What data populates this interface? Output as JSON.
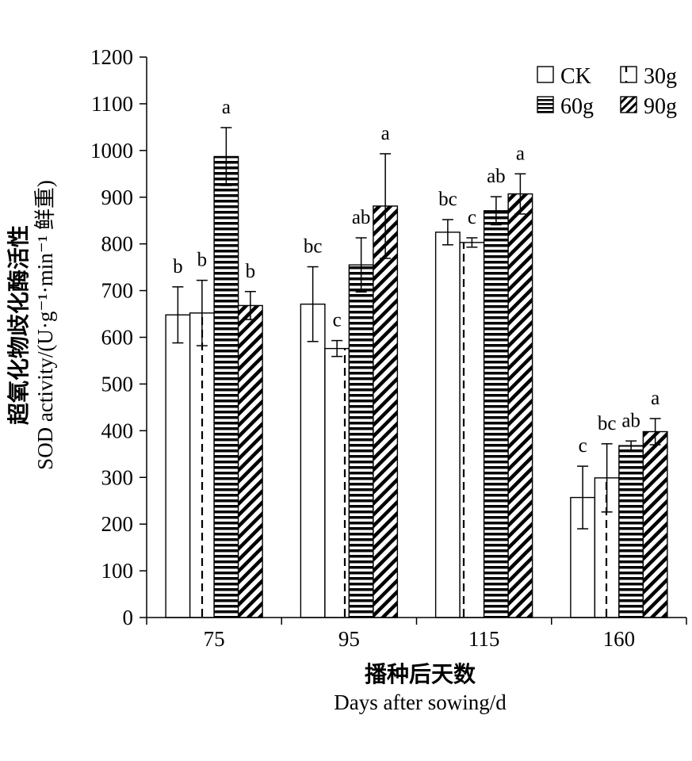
{
  "chart_data": {
    "type": "bar",
    "categories": [
      "75",
      "95",
      "115",
      "160"
    ],
    "series": [
      {
        "name": "CK",
        "pattern": "open",
        "values": [
          648,
          671,
          825,
          257
        ],
        "errors": [
          60,
          80,
          27,
          67
        ],
        "letters": [
          "b",
          "bc",
          "bc",
          "c"
        ]
      },
      {
        "name": "30g",
        "pattern": "dashed",
        "values": [
          652,
          576,
          803,
          299
        ],
        "errors": [
          70,
          17,
          10,
          73
        ],
        "letters": [
          "b",
          "c",
          "c",
          "bc"
        ]
      },
      {
        "name": "60g",
        "pattern": "horizontal",
        "values": [
          987,
          755,
          871,
          368
        ],
        "errors": [
          62,
          58,
          30,
          10
        ],
        "letters": [
          "a",
          "ab",
          "ab",
          "ab"
        ]
      },
      {
        "name": "90g",
        "pattern": "diagonal",
        "values": [
          668,
          881,
          907,
          398
        ],
        "errors": [
          30,
          112,
          43,
          28
        ],
        "letters": [
          "b",
          "a",
          "a",
          "a"
        ]
      }
    ],
    "ylim": [
      0,
      1200
    ],
    "yticks": [
      0,
      100,
      200,
      300,
      400,
      500,
      600,
      700,
      800,
      900,
      1000,
      1100,
      1200
    ],
    "ylabel_cn": "超氧化物歧化酶活性",
    "ylabel_en": "SOD activity/(U·g⁻¹·min⁻¹ 鲜重)",
    "xlabel_cn": "播种后天数",
    "xlabel_en": "Days after sowing/d",
    "legend_position": "top-right",
    "grid": false
  }
}
